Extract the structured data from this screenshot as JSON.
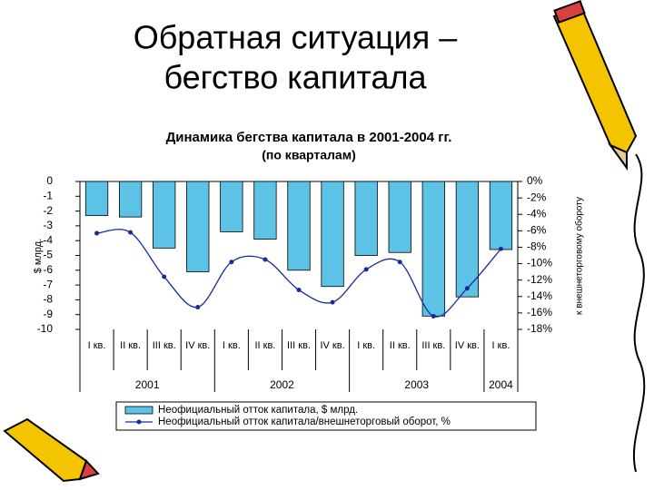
{
  "slide_title": [
    "Обратная ситуация –",
    "бегство капитала"
  ],
  "chart_data": {
    "type": "bar-line",
    "title": "Динамика бегства капитала в 2001-2004 гг.",
    "subtitle": "(по кварталам)",
    "y_label": "$ млрд.",
    "y2_label": "к внешнеторговому обороту",
    "groups": [
      {
        "label": "2001",
        "categories": [
          "I кв.",
          "II кв.",
          "III кв.",
          "IV кв."
        ]
      },
      {
        "label": "2002",
        "categories": [
          "I кв.",
          "II кв.",
          "III кв.",
          "IV кв."
        ]
      },
      {
        "label": "2003",
        "categories": [
          "I кв.",
          "II кв.",
          "III кв.",
          "IV кв."
        ]
      },
      {
        "label": "2004",
        "categories": [
          "I кв."
        ]
      }
    ],
    "series": [
      {
        "name": "Неофициальный отток капитала, $ млрд.",
        "kind": "bar",
        "color": "#5cc3e6",
        "values": [
          -2.3,
          -2.4,
          -4.5,
          -6.1,
          -3.4,
          -3.9,
          -6.0,
          -7.1,
          -5.0,
          -4.8,
          -9.1,
          -7.8,
          -4.6
        ]
      },
      {
        "name": "Неофициальный отток капитала/внешнеторговый оборот, %",
        "kind": "line",
        "axis": "y2",
        "color": "#1a2a9a",
        "values": [
          -6.3,
          -6.2,
          -11.6,
          -15.3,
          -9.8,
          -9.5,
          -13.2,
          -14.7,
          -10.7,
          -9.8,
          -16.4,
          -13.0,
          -8.2
        ]
      }
    ],
    "ylim": [
      0,
      -10
    ],
    "yticks": [
      0,
      -1,
      -2,
      -3,
      -4,
      -5,
      -6,
      -7,
      -8,
      -9,
      -10
    ],
    "y2lim": [
      0,
      -18
    ],
    "y2ticks": [
      {
        "value": 0,
        "label": "0%"
      },
      {
        "value": -2,
        "label": "-2%"
      },
      {
        "value": -4,
        "label": "-4%"
      },
      {
        "value": -6,
        "label": "-6%"
      },
      {
        "value": -8,
        "label": "-8%"
      },
      {
        "value": -10,
        "label": "-10%"
      },
      {
        "value": -12,
        "label": "-12%"
      },
      {
        "value": -14,
        "label": "-14%"
      },
      {
        "value": -16,
        "label": "-16%"
      },
      {
        "value": -18,
        "label": "-18%"
      }
    ],
    "legend": "bottom"
  }
}
